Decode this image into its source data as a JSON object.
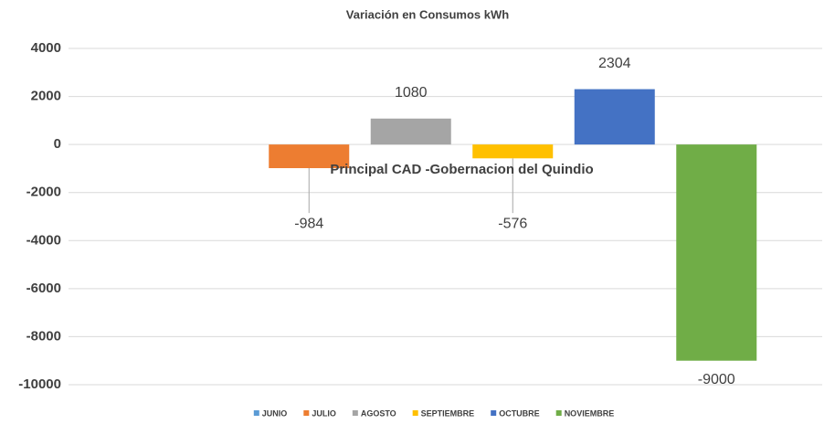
{
  "chart_data": {
    "type": "bar",
    "title": "Variación en Consumos kWh",
    "categories": [
      "Principal CAD -Gobernacion del Quindio"
    ],
    "series": [
      {
        "name": "JUNIO",
        "color": "#5b9bd5",
        "values": [
          null
        ]
      },
      {
        "name": "JULIO",
        "color": "#ed7d31",
        "values": [
          -984
        ]
      },
      {
        "name": "AGOSTO",
        "color": "#a5a5a5",
        "values": [
          1080
        ]
      },
      {
        "name": "SEPTIEMBRE",
        "color": "#ffc000",
        "values": [
          -576
        ]
      },
      {
        "name": "OCTUBRE",
        "color": "#4472c4",
        "values": [
          2304
        ]
      },
      {
        "name": "NOVIEMBRE",
        "color": "#70ad47",
        "values": [
          -9000
        ]
      }
    ],
    "ylim": [
      -10000,
      4000
    ],
    "yticks": [
      -10000,
      -8000,
      -6000,
      -4000,
      -2000,
      0,
      2000,
      4000
    ],
    "grid": true,
    "legend": "bottom"
  }
}
